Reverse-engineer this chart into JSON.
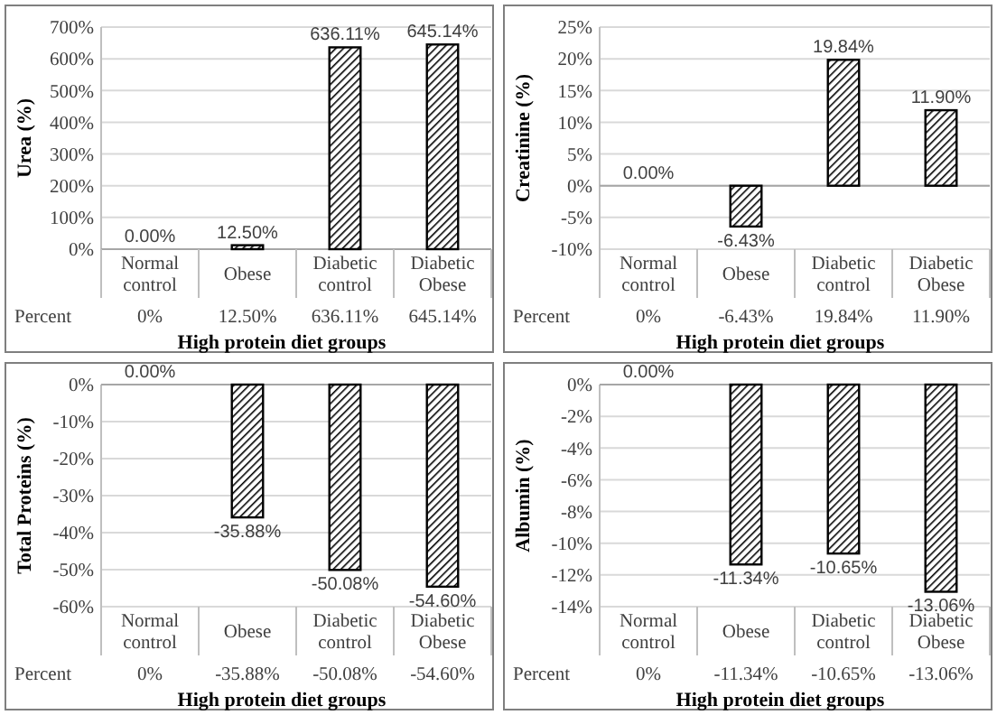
{
  "chart_data": [
    {
      "type": "bar",
      "ylabel": "Urea (%)",
      "xlabel": "High protein diet groups",
      "categories": [
        "Normal control",
        "Obese",
        "Diabetic control",
        "Diabetic Obese"
      ],
      "series": [
        {
          "name": "Percent",
          "color": "#000000",
          "values": [
            0,
            12.5,
            636.11,
            645.14
          ],
          "value_labels": [
            "0%",
            "12.50%",
            "636.11%",
            "645.14%"
          ]
        }
      ],
      "ylim": [
        0,
        700
      ],
      "yticks": [
        {
          "value": 0,
          "label": "0%"
        },
        {
          "value": 100,
          "label": "100%"
        },
        {
          "value": 200,
          "label": "200%"
        },
        {
          "value": 300,
          "label": "300%"
        },
        {
          "value": 400,
          "label": "400%"
        },
        {
          "value": 500,
          "label": "500%"
        },
        {
          "value": 600,
          "label": "600%"
        },
        {
          "value": 700,
          "label": "700%"
        }
      ],
      "grid": "y",
      "annotations": [
        {
          "text": "0.00%",
          "x": "Normal control",
          "y": 0
        },
        {
          "text": "12.50%",
          "x": "Obese",
          "y": 12.5
        },
        {
          "text": "636.11%",
          "x": "Diabetic control",
          "y": 636.11
        },
        {
          "text": "645.14%",
          "x": "Diabetic Obese",
          "y": 645.14
        }
      ]
    },
    {
      "type": "bar",
      "ylabel": "Creatinine (%)",
      "xlabel": "High protein diet groups",
      "categories": [
        "Normal control",
        "Obese",
        "Diabetic control",
        "Diabetic Obese"
      ],
      "series": [
        {
          "name": "Percent",
          "color": "#000000",
          "values": [
            0,
            -6.43,
            19.84,
            11.9
          ],
          "value_labels": [
            "0%",
            "-6.43%",
            "19.84%",
            "11.90%"
          ]
        }
      ],
      "ylim": [
        -10,
        25
      ],
      "yticks": [
        {
          "value": -10,
          "label": "-10%"
        },
        {
          "value": -5,
          "label": "-5%"
        },
        {
          "value": 0,
          "label": "0%"
        },
        {
          "value": 5,
          "label": "5%"
        },
        {
          "value": 10,
          "label": "10%"
        },
        {
          "value": 15,
          "label": "15%"
        },
        {
          "value": 20,
          "label": "20%"
        },
        {
          "value": 25,
          "label": "25%"
        }
      ],
      "grid": "y",
      "annotations": [
        {
          "text": "0.00%",
          "x": "Normal control",
          "y": 0
        },
        {
          "text": "-6.43%",
          "x": "Obese",
          "y": -6.43
        },
        {
          "text": "19.84%",
          "x": "Diabetic control",
          "y": 19.84
        },
        {
          "text": "11.90%",
          "x": "Diabetic Obese",
          "y": 11.9
        }
      ]
    },
    {
      "type": "bar",
      "ylabel": "Total Proteins  (%)",
      "xlabel": "High protein diet groups",
      "categories": [
        "Normal control",
        "Obese",
        "Diabetic control",
        "Diabetic Obese"
      ],
      "series": [
        {
          "name": "Percent",
          "color": "#000000",
          "values": [
            0,
            -35.88,
            -50.08,
            -54.6
          ],
          "value_labels": [
            "0%",
            "-35.88%",
            "-50.08%",
            "-54.60%"
          ]
        }
      ],
      "ylim": [
        -60,
        0
      ],
      "yticks": [
        {
          "value": -60,
          "label": "-60%"
        },
        {
          "value": -50,
          "label": "-50%"
        },
        {
          "value": -40,
          "label": "-40%"
        },
        {
          "value": -30,
          "label": "-30%"
        },
        {
          "value": -20,
          "label": "-20%"
        },
        {
          "value": -10,
          "label": "-10%"
        },
        {
          "value": 0,
          "label": "0%"
        }
      ],
      "grid": "y",
      "annotations": [
        {
          "text": "0.00%",
          "x": "Normal control",
          "y": 0
        },
        {
          "text": "-35.88%",
          "x": "Obese",
          "y": -35.88
        },
        {
          "text": "-50.08%",
          "x": "Diabetic control",
          "y": -50.08
        },
        {
          "text": "-54.60%",
          "x": "Diabetic Obese",
          "y": -54.6
        }
      ]
    },
    {
      "type": "bar",
      "ylabel": "Albumin (%)",
      "xlabel": "High protein diet groups",
      "categories": [
        "Normal control",
        "Obese",
        "Diabetic control",
        "Diabetic Obese"
      ],
      "series": [
        {
          "name": "Percent",
          "color": "#000000",
          "values": [
            0,
            -11.34,
            -10.65,
            -13.06
          ],
          "value_labels": [
            "0%",
            "-11.34%",
            "-10.65%",
            "-13.06%"
          ]
        }
      ],
      "ylim": [
        -14,
        0
      ],
      "yticks": [
        {
          "value": -14,
          "label": "-14%"
        },
        {
          "value": -12,
          "label": "-12%"
        },
        {
          "value": -10,
          "label": "-10%"
        },
        {
          "value": -8,
          "label": "-8%"
        },
        {
          "value": -6,
          "label": "-6%"
        },
        {
          "value": -4,
          "label": "-4%"
        },
        {
          "value": -2,
          "label": "-2%"
        },
        {
          "value": 0,
          "label": "0%"
        }
      ],
      "grid": "y",
      "annotations": [
        {
          "text": "0.00%",
          "x": "Normal control",
          "y": 0
        },
        {
          "text": "-11.34%",
          "x": "Obese",
          "y": -11.34
        },
        {
          "text": "-10.65%",
          "x": "Diabetic control",
          "y": -10.65
        },
        {
          "text": "-13.06%",
          "x": "Diabetic Obese",
          "y": -13.06
        }
      ]
    }
  ]
}
